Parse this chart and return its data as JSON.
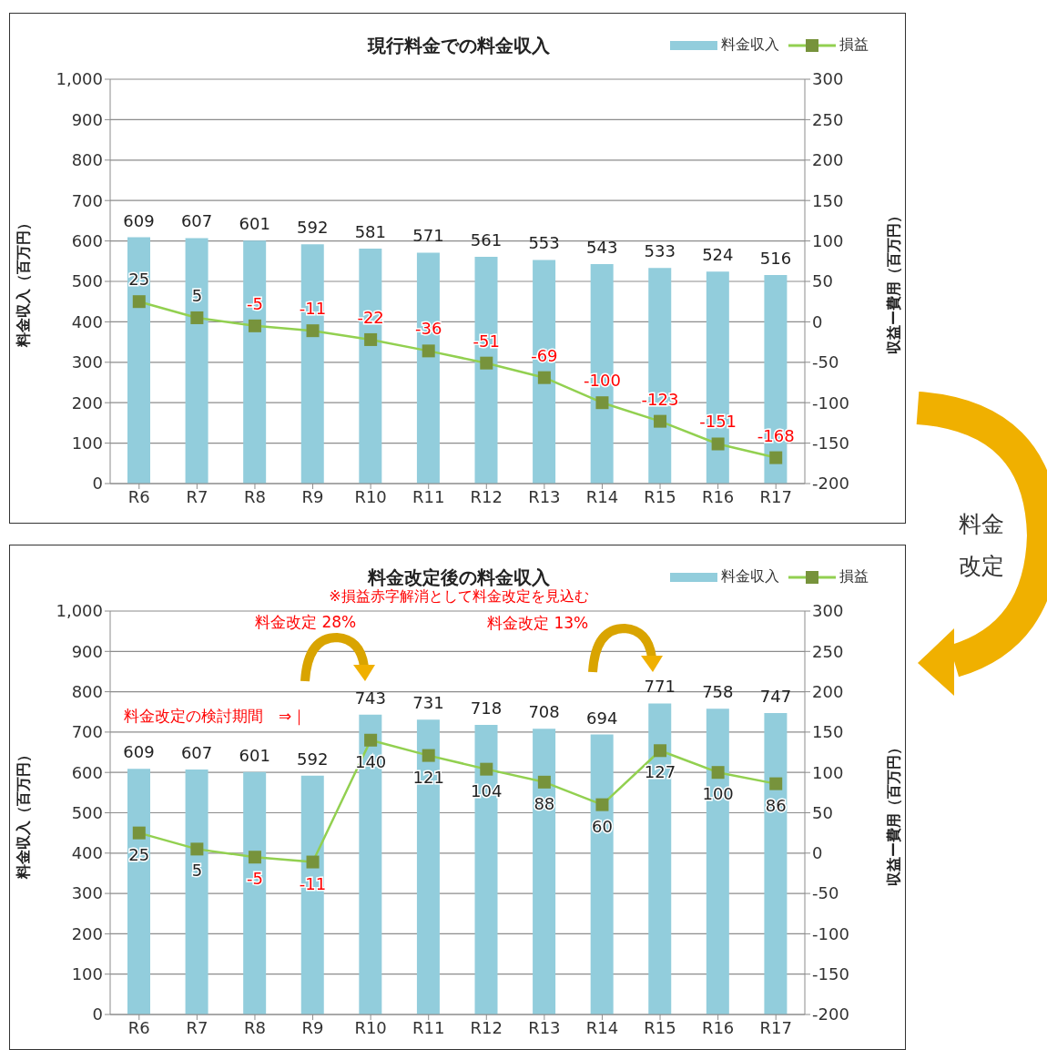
{
  "chart_data": [
    {
      "type": "bar",
      "title": "現行料金での料金収入",
      "ylabel": "料金収入（百万円）",
      "y2label": "収益ー費用（百万円）",
      "categories": [
        "R6",
        "R7",
        "R8",
        "R9",
        "R10",
        "R11",
        "R12",
        "R13",
        "R14",
        "R15",
        "R16",
        "R17"
      ],
      "series": [
        {
          "name": "料金収入",
          "color": "#92cddc",
          "values": [
            609,
            607,
            601,
            592,
            581,
            571,
            561,
            553,
            543,
            533,
            524,
            516
          ]
        },
        {
          "name": "損益",
          "type": "line",
          "axis": "y2",
          "color": "#92d050",
          "values": [
            25,
            5,
            -5,
            -11,
            -22,
            -36,
            -51,
            -69,
            -100,
            -123,
            -151,
            -168
          ]
        }
      ],
      "ylim": [
        0,
        1000
      ],
      "yticks": [
        0,
        100,
        200,
        300,
        400,
        500,
        600,
        700,
        800,
        900,
        {
          "value": 1000,
          "label": "1,000"
        }
      ],
      "y2lim": [
        -200,
        300
      ],
      "y2ticks": [
        -200,
        -150,
        -100,
        -50,
        0,
        50,
        100,
        150,
        200,
        250,
        300
      ],
      "grid": "y",
      "legend": "top right",
      "marker": "square",
      "line_style": "solid",
      "data_labels": true,
      "annotations": [
        "料金改定"
      ]
    },
    {
      "type": "bar",
      "title": "料金改定後の料金収入",
      "subtitle": "※損益赤字解消として料金改定を見込む",
      "ylabel": "料金収入（百万円）",
      "y2label": "収益ー費用（百万円）",
      "categories": [
        "R6",
        "R7",
        "R8",
        "R9",
        "R10",
        "R11",
        "R12",
        "R13",
        "R14",
        "R15",
        "R16",
        "R17"
      ],
      "series": [
        {
          "name": "料金収入",
          "color": "#92cddc",
          "values": [
            609,
            607,
            601,
            592,
            743,
            731,
            718,
            708,
            694,
            771,
            758,
            747
          ]
        },
        {
          "name": "損益",
          "type": "line",
          "axis": "y2",
          "color": "#92d050",
          "values": [
            25,
            5,
            -5,
            -11,
            140,
            121,
            104,
            88,
            60,
            127,
            100,
            86
          ]
        }
      ],
      "ylim": [
        0,
        1000
      ],
      "yticks": [
        0,
        100,
        200,
        300,
        400,
        500,
        600,
        700,
        800,
        900,
        {
          "value": 1000,
          "label": "1,000"
        }
      ],
      "y2lim": [
        -200,
        300
      ],
      "y2ticks": [
        -200,
        -150,
        -100,
        -50,
        0,
        50,
        100,
        150,
        200,
        250,
        300
      ],
      "grid": "y",
      "legend": "top right",
      "marker": "square",
      "line_style": "solid",
      "data_labels": true,
      "annotations": [
        "料金改定 28%",
        "料金改定 13%",
        "料金改定の検討期間　⇒｜"
      ]
    }
  ]
}
